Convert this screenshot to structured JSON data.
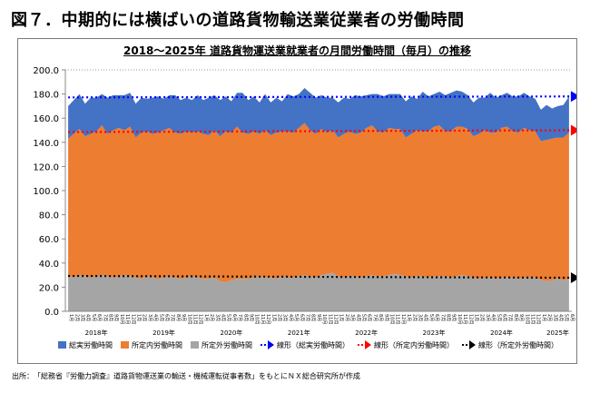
{
  "figure": {
    "title": "図７．中期的には横ばいの道路貨物輸送業従業者の労働時間",
    "source": "出所：　「総務省『労働力調査』道路貨物運送業の輸送・機械運転従事者数」をもとにＮＸ総合研究所が作成"
  },
  "chart_data": {
    "type": "area",
    "stacked": true,
    "title": "2018～2025年 道路貨物運送業就業者の月間労働時間（毎月）の推移",
    "ylim": [
      0,
      200
    ],
    "ytick_step": 20,
    "ytick_labels": [
      "0.0",
      "20.0",
      "40.0",
      "60.0",
      "80.0",
      "100.0",
      "120.0",
      "140.0",
      "160.0",
      "180.0",
      "200.0"
    ],
    "grid": false,
    "legend_position": "bottom",
    "x": [
      "1月",
      "2月",
      "3月",
      "4月",
      "5月",
      "6月",
      "7月",
      "8月",
      "9月",
      "10月",
      "11月",
      "12月",
      "1月",
      "2月",
      "3月",
      "4月",
      "5月",
      "6月",
      "7月",
      "8月",
      "9月",
      "10月",
      "11月",
      "12月",
      "1月",
      "2月",
      "3月",
      "4月",
      "5月",
      "6月",
      "7月",
      "8月",
      "9月",
      "10月",
      "11月",
      "12月",
      "1月",
      "2月",
      "3月",
      "4月",
      "5月",
      "6月",
      "7月",
      "8月",
      "9月",
      "10月",
      "11月",
      "12月",
      "1月",
      "2月",
      "3月",
      "4月",
      "5月",
      "6月",
      "7月",
      "8月",
      "9月",
      "10月",
      "11月",
      "12月",
      "1月",
      "2月",
      "3月",
      "4月",
      "5月",
      "6月",
      "7月",
      "8月",
      "9月",
      "10月",
      "11月",
      "12月",
      "1月",
      "2月",
      "3月",
      "4月",
      "5月",
      "6月",
      "7月",
      "8月",
      "9月",
      "10月",
      "11月",
      "12月",
      "1月",
      "2月",
      "3月",
      "4月",
      "5月",
      "6月"
    ],
    "year_labels": [
      {
        "label": "2018年",
        "month_index": 5
      },
      {
        "label": "2019年",
        "month_index": 17
      },
      {
        "label": "2020年",
        "month_index": 29
      },
      {
        "label": "2021年",
        "month_index": 41
      },
      {
        "label": "2022年",
        "month_index": 53
      },
      {
        "label": "2023年",
        "month_index": 65
      },
      {
        "label": "2024年",
        "month_index": 77
      },
      {
        "label": "2025年",
        "month_index": 87
      }
    ],
    "series": [
      {
        "name": "所定外労働時間",
        "color": "#a5a5a5",
        "values": [
          29,
          28,
          30,
          29,
          28,
          29,
          30,
          29,
          28,
          29,
          30,
          29,
          28,
          27,
          29,
          28,
          27,
          28,
          29,
          28,
          27,
          28,
          29,
          28,
          27,
          27,
          28,
          25,
          24,
          26,
          27,
          27,
          27,
          28,
          29,
          28,
          28,
          27,
          29,
          28,
          28,
          29,
          30,
          29,
          28,
          30,
          31,
          32,
          29,
          28,
          29,
          29,
          28,
          29,
          30,
          29,
          29,
          30,
          31,
          30,
          29,
          28,
          29,
          29,
          28,
          29,
          29,
          29,
          28,
          29,
          30,
          29,
          28,
          27,
          28,
          28,
          27,
          28,
          28,
          28,
          27,
          28,
          28,
          28,
          26,
          25,
          26,
          27,
          26,
          27
        ]
      },
      {
        "name": "所定内労働時間",
        "color": "#ed7d31",
        "values": [
          114,
          119,
          121,
          116,
          119,
          120,
          124,
          118,
          122,
          123,
          120,
          124,
          116,
          121,
          120,
          119,
          121,
          122,
          123,
          120,
          120,
          121,
          119,
          121,
          120,
          119,
          122,
          120,
          125,
          122,
          126,
          121,
          120,
          121,
          118,
          122,
          118,
          121,
          120,
          121,
          120,
          123,
          126,
          121,
          119,
          121,
          117,
          118,
          115,
          119,
          120,
          118,
          120,
          123,
          124,
          120,
          119,
          122,
          120,
          121,
          115,
          119,
          121,
          120,
          121,
          124,
          125,
          120,
          121,
          124,
          123,
          122,
          117,
          120,
          122,
          120,
          121,
          124,
          125,
          121,
          121,
          124,
          122,
          121,
          115,
          117,
          117,
          117,
          118,
          121
        ]
      },
      {
        "name": "総実労働時間",
        "color": "#4472c4",
        "values": [
          27,
          28,
          29,
          27,
          30,
          28,
          26,
          30,
          29,
          27,
          29,
          28,
          28,
          29,
          27,
          30,
          30,
          26,
          27,
          31,
          28,
          28,
          27,
          30,
          28,
          31,
          29,
          30,
          29,
          26,
          28,
          33,
          28,
          29,
          26,
          30,
          27,
          29,
          25,
          31,
          30,
          28,
          29,
          31,
          30,
          28,
          29,
          27,
          29,
          30,
          27,
          32,
          30,
          27,
          26,
          31,
          30,
          28,
          29,
          29,
          30,
          31,
          26,
          33,
          29,
          27,
          28,
          30,
          32,
          30,
          29,
          28,
          28,
          30,
          27,
          33,
          29,
          27,
          28,
          29,
          30,
          29,
          28,
          27,
          26,
          29,
          25,
          26,
          27,
          30
        ]
      }
    ],
    "trendlines": [
      {
        "label": "線形（総実労働時間）",
        "color": "#0000ff",
        "start": 177.2,
        "end": 178.0
      },
      {
        "label": "線形（所定内労働時間）",
        "color": "#ff0000",
        "start": 148.5,
        "end": 150.0
      },
      {
        "label": "線形（所定外労働時間）",
        "color": "#000000",
        "start": 29.3,
        "end": 27.8
      }
    ],
    "legend": [
      {
        "label": "総実労働時間",
        "color": "#4472c4",
        "kind": "swatch"
      },
      {
        "label": "所定内労働時間",
        "color": "#ed7d31",
        "kind": "swatch"
      },
      {
        "label": "所定外労働時間",
        "color": "#a5a5a5",
        "kind": "swatch"
      },
      {
        "label": "線形（総実労働時間）",
        "color": "#0000ff",
        "kind": "arrow"
      },
      {
        "label": "線形（所定内労働時間）",
        "color": "#ff0000",
        "kind": "arrow"
      },
      {
        "label": "線形（所定外労働時間）",
        "color": "#000000",
        "kind": "arrow"
      }
    ]
  }
}
